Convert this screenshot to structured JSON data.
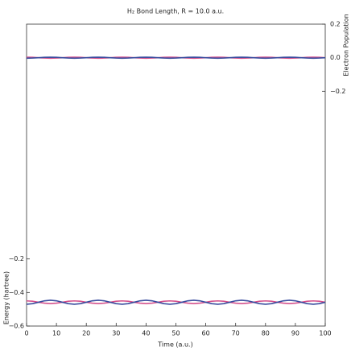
{
  "chart_data": {
    "type": "line",
    "title": "H₂ Bond Length, R = 10.0 a.u.",
    "x_label": "Time (a.u.)",
    "y_label": "Energy (hartree)",
    "y2_label": "Electron Population",
    "x": [
      0,
      2,
      4,
      6,
      8,
      10,
      12,
      14,
      16,
      18,
      20,
      22,
      24,
      26,
      28,
      30,
      32,
      34,
      36,
      38,
      40,
      42,
      44,
      46,
      48,
      50,
      52,
      54,
      56,
      58,
      60,
      62,
      64,
      66,
      68,
      70,
      72,
      74,
      76,
      78,
      80,
      82,
      84,
      86,
      88,
      90,
      92,
      94,
      96,
      98,
      100
    ],
    "xlim": [
      0,
      100
    ],
    "xticks": [
      0,
      10,
      20,
      30,
      40,
      50,
      60,
      70,
      80,
      90,
      100
    ],
    "ylim": [
      -0.6,
      1.2
    ],
    "yticks": [
      {
        "value": -0.6,
        "label": "−0.6"
      },
      {
        "value": -0.4,
        "label": "−0.4"
      },
      {
        "value": -0.2,
        "label": "−0.2"
      }
    ],
    "y2lim": [
      -1.6,
      0.2
    ],
    "y2ticks": [
      0.2,
      {
        "value": 0,
        "label": "0.0"
      },
      {
        "value": -0.2,
        "label": "−0.2"
      }
    ],
    "series": [
      {
        "color": "#d4508c",
        "values": [
          -0.45,
          -0.4523,
          -0.458,
          -0.4637,
          -0.466,
          -0.4637,
          -0.458,
          -0.4523,
          -0.45,
          -0.4523,
          -0.458,
          -0.4637,
          -0.466,
          -0.4637,
          -0.458,
          -0.4523,
          -0.45,
          -0.4523,
          -0.458,
          -0.4637,
          -0.466,
          -0.4637,
          -0.458,
          -0.4523,
          -0.45,
          -0.4523,
          -0.458,
          -0.4637,
          -0.466,
          -0.4637,
          -0.458,
          -0.4523,
          -0.45,
          -0.4523,
          -0.458,
          -0.4637,
          -0.466,
          -0.4637,
          -0.458,
          -0.4523,
          -0.45,
          -0.4523,
          -0.458,
          -0.4637,
          -0.466,
          -0.4637,
          -0.458,
          -0.4523,
          -0.45,
          -0.4523,
          -0.458
        ]
      },
      {
        "color": "#3a4c9e",
        "values": [
          -0.47,
          -0.4665,
          -0.458,
          -0.4495,
          -0.446,
          -0.4495,
          -0.458,
          -0.4665,
          -0.47,
          -0.4665,
          -0.458,
          -0.4495,
          -0.446,
          -0.4495,
          -0.458,
          -0.4665,
          -0.47,
          -0.4665,
          -0.458,
          -0.4495,
          -0.446,
          -0.4495,
          -0.458,
          -0.4665,
          -0.47,
          -0.4665,
          -0.458,
          -0.4495,
          -0.446,
          -0.4495,
          -0.458,
          -0.4665,
          -0.47,
          -0.4665,
          -0.458,
          -0.4495,
          -0.446,
          -0.4495,
          -0.458,
          -0.4665,
          -0.47,
          -0.4665,
          -0.458,
          -0.4495,
          -0.446,
          -0.4495,
          -0.458,
          -0.4665,
          -0.47,
          -0.4665,
          -0.458
        ]
      },
      {
        "color": "#d4508c",
        "axis": "y2",
        "values": [
          0.003,
          0.0021,
          0,
          -0.0021,
          -0.003,
          -0.0021,
          0,
          0.0021,
          0.003,
          0.0021,
          0,
          -0.0021,
          -0.003,
          -0.0021,
          0,
          0.0021,
          0.003,
          0.0021,
          0,
          -0.0021,
          -0.003,
          -0.0021,
          0,
          0.0021,
          0.003,
          0.0021,
          0,
          -0.0021,
          -0.003,
          -0.0021,
          0,
          0.0021,
          0.003,
          0.0021,
          0,
          -0.0021,
          -0.003,
          -0.0021,
          0,
          0.0021,
          0.003,
          0.0021,
          0,
          -0.0021,
          -0.003,
          -0.0021,
          0,
          0.0021,
          0.003,
          0.0021,
          0
        ]
      },
      {
        "color": "#3a4c9e",
        "axis": "y2",
        "values": [
          -0.003,
          -0.0021,
          0,
          0.0021,
          0.003,
          0.0021,
          0,
          -0.0021,
          -0.003,
          -0.0021,
          0,
          0.0021,
          0.003,
          0.0021,
          0,
          -0.0021,
          -0.003,
          -0.0021,
          0,
          0.0021,
          0.003,
          0.0021,
          0,
          -0.0021,
          -0.003,
          -0.0021,
          0,
          0.0021,
          0.003,
          0.0021,
          0,
          -0.0021,
          -0.003,
          -0.0021,
          0,
          0.0021,
          0.003,
          0.0021,
          0,
          -0.0021,
          -0.003,
          -0.0021,
          0,
          0.0021,
          0.003,
          0.0021,
          0,
          -0.0021,
          -0.003,
          -0.0021,
          0
        ]
      }
    ]
  }
}
